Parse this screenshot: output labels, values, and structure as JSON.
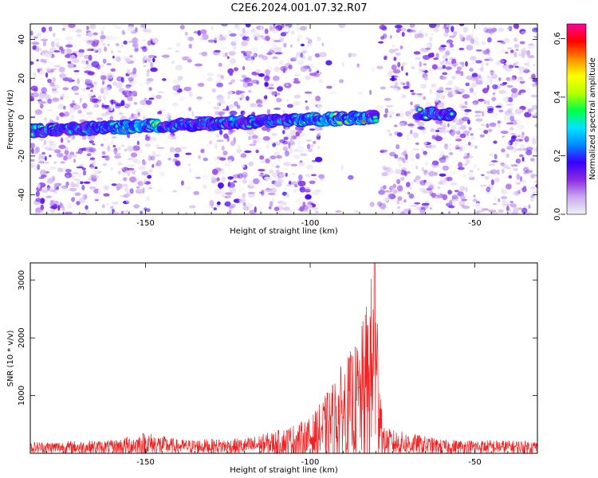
{
  "figure_title": "C2E6.2024.001.07.32.R07",
  "chart_data": [
    {
      "type": "heatmap",
      "title": "",
      "xlabel": "Height of straight line (km)",
      "ylabel": "Frequency (Hz)",
      "xlim": [
        -185,
        -31
      ],
      "ylim": [
        -50,
        48
      ],
      "x_ticks": [
        -150,
        -100,
        -50
      ],
      "y_ticks": [
        40,
        20,
        0,
        -20,
        -40
      ],
      "grid": false,
      "colorbar": {
        "label": "Normalized spectral amplitude",
        "range": [
          0.0,
          0.65
        ],
        "ticks": [
          0.0,
          0.2,
          0.4,
          0.6
        ],
        "colormap": [
          "#f2f2f2",
          "#c9a8f0",
          "#8a2be2",
          "#3a00ff",
          "#0088ff",
          "#00e5ff",
          "#00ff44",
          "#b8ff00",
          "#ffff00",
          "#ff8800",
          "#ff0000",
          "#ff0099"
        ]
      },
      "ridge": {
        "description_segments": [
          {
            "x0": -185,
            "x1": -80,
            "freq_start": -7,
            "freq_end": 0
          },
          {
            "x0": -67,
            "x1": -57,
            "freq_start": 2,
            "freq_end": 1
          }
        ],
        "peak_amplitude": 0.6
      },
      "sparse_regions": [
        [
          -148,
          -130
        ],
        [
          -90,
          -78
        ]
      ]
    },
    {
      "type": "line",
      "title": "",
      "xlabel": "Height of straight line (km)",
      "ylabel": "SNR (10 * v/v)",
      "xlim": [
        -185,
        -31
      ],
      "ylim": [
        0,
        3300
      ],
      "x_ticks": [
        -150,
        -100,
        -50
      ],
      "y_ticks": [
        1000,
        2000,
        3000
      ],
      "grid": false,
      "series": [
        {
          "color": "#ee2222",
          "envelope": [
            {
              "x": -185,
              "base": 100,
              "noise": 100
            },
            {
              "x": -160,
              "base": 110,
              "noise": 120
            },
            {
              "x": -150,
              "base": 160,
              "noise": 220
            },
            {
              "x": -140,
              "base": 120,
              "noise": 120
            },
            {
              "x": -120,
              "base": 120,
              "noise": 140
            },
            {
              "x": -110,
              "base": 180,
              "noise": 220
            },
            {
              "x": -100,
              "base": 260,
              "noise": 350
            },
            {
              "x": -95,
              "base": 450,
              "noise": 600
            },
            {
              "x": -90,
              "base": 700,
              "noise": 900
            },
            {
              "x": -85,
              "base": 900,
              "noise": 1100
            },
            {
              "x": -81,
              "base": 1400,
              "noise": 1850
            },
            {
              "x": -79,
              "base": 1100,
              "noise": 1300
            },
            {
              "x": -78,
              "base": 200,
              "noise": 250
            },
            {
              "x": -60,
              "base": 110,
              "noise": 130
            },
            {
              "x": -31,
              "base": 110,
              "noise": 110
            }
          ],
          "max": 3300
        }
      ]
    }
  ]
}
